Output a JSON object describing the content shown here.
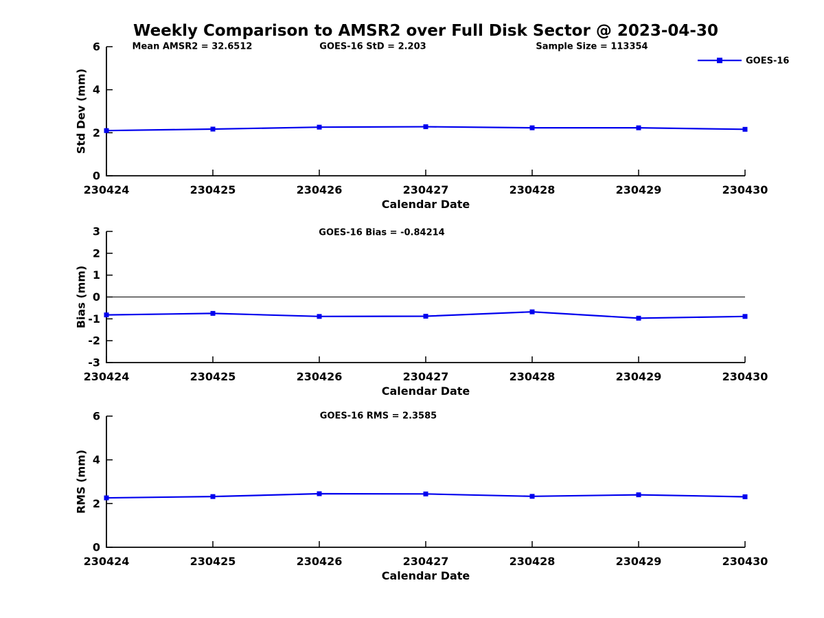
{
  "title": "Weekly Comparison to AMSR2 over Full Disk Sector @ 2023-04-30",
  "legend": {
    "label": "GOES-16",
    "position": "top-right"
  },
  "colors": {
    "series": "#0000EE",
    "axis": "#000000",
    "text": "#000000",
    "background": "#FFFFFF"
  },
  "chart_data": [
    {
      "type": "line",
      "panel": "std-dev",
      "marker": "square",
      "grid": false,
      "xlabel": "Calendar Date",
      "ylabel": "Std Dev (mm)",
      "ylim": [
        0,
        6
      ],
      "yticks": [
        0,
        2,
        4,
        6
      ],
      "categories": [
        "230424",
        "230425",
        "230426",
        "230427",
        "230428",
        "230429",
        "230430"
      ],
      "annotations": [
        "Mean AMSR2 = 32.6512",
        "GOES-16 StD = 2.203",
        "Sample Size = 113354"
      ],
      "series": [
        {
          "name": "GOES-16",
          "values": [
            2.1,
            2.17,
            2.26,
            2.28,
            2.23,
            2.23,
            2.16
          ]
        }
      ]
    },
    {
      "type": "line",
      "panel": "bias",
      "marker": "square",
      "grid": false,
      "zero_line": true,
      "xlabel": "Calendar Date",
      "ylabel": "Bias (mm)",
      "ylim": [
        -3,
        3
      ],
      "yticks": [
        3,
        2,
        1,
        0,
        -1,
        -2,
        -3
      ],
      "categories": [
        "230424",
        "230425",
        "230426",
        "230427",
        "230428",
        "230429",
        "230430"
      ],
      "annotations": [
        "GOES-16 Bias  = -0.84214"
      ],
      "series": [
        {
          "name": "GOES-16",
          "values": [
            -0.82,
            -0.75,
            -0.89,
            -0.88,
            -0.68,
            -0.97,
            -0.89
          ]
        }
      ]
    },
    {
      "type": "line",
      "panel": "rms",
      "marker": "square",
      "grid": false,
      "xlabel": "Calendar Date",
      "ylabel": "RMS (mm)",
      "ylim": [
        0,
        6
      ],
      "yticks": [
        0,
        2,
        4,
        6
      ],
      "categories": [
        "230424",
        "230425",
        "230426",
        "230427",
        "230428",
        "230429",
        "230430"
      ],
      "annotations": [
        "GOES-16 RMS = 2.3585"
      ],
      "series": [
        {
          "name": "GOES-16",
          "values": [
            2.26,
            2.32,
            2.45,
            2.44,
            2.33,
            2.4,
            2.31
          ]
        }
      ]
    }
  ]
}
